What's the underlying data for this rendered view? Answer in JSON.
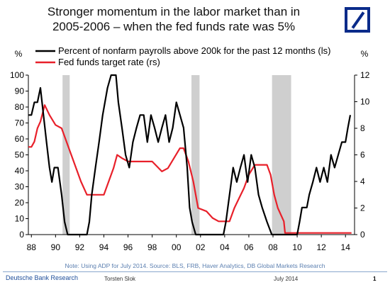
{
  "header": {
    "title_line1": "Stronger momentum in the labor market than in",
    "title_line2": "2005-2006 – when the fed funds rate was 5%"
  },
  "footer": {
    "note": "Note: Using ADP for July 2014. Source: BLS, FRB, Haver Analytics, DB Global Markets Research",
    "brand": "Deutsche Bank Research",
    "author": "Torsten Slok",
    "date": "July 2014",
    "page": "1"
  },
  "colors": {
    "payrolls": "#000000",
    "fed_funds": "#e8202a",
    "recession": "#cfcfcf",
    "brand": "#0a2b8a"
  },
  "chart_data": {
    "type": "line",
    "left_unit": "%",
    "right_unit": "%",
    "x_ticks": [
      "88",
      "90",
      "92",
      "94",
      "96",
      "98",
      "00",
      "02",
      "04",
      "06",
      "08",
      "10",
      "12",
      "14"
    ],
    "xlim": [
      1987.75,
      2014.75
    ],
    "ylim_left": [
      0,
      100
    ],
    "ylim_right": [
      0,
      12
    ],
    "y_ticks_left": [
      "0",
      "10",
      "20",
      "30",
      "40",
      "50",
      "60",
      "70",
      "80",
      "90",
      "100"
    ],
    "y_ticks_right": [
      "0",
      "2",
      "4",
      "6",
      "8",
      "10",
      "12"
    ],
    "recessions": [
      [
        1990.58,
        1991.17
      ],
      [
        2001.25,
        2001.92
      ],
      [
        2007.92,
        2009.5
      ]
    ],
    "series": [
      {
        "name": "Percent of nonfarm payrolls above 200k for the past 12 months (ls)",
        "axis": "left",
        "points": [
          [
            1987.75,
            75
          ],
          [
            1988.0,
            75
          ],
          [
            1988.25,
            83
          ],
          [
            1988.5,
            83
          ],
          [
            1988.75,
            92
          ],
          [
            1989.0,
            75
          ],
          [
            1989.25,
            58
          ],
          [
            1989.5,
            42
          ],
          [
            1989.7,
            33
          ],
          [
            1989.9,
            42
          ],
          [
            1990.2,
            42
          ],
          [
            1990.5,
            25
          ],
          [
            1990.75,
            8
          ],
          [
            1991.0,
            0
          ],
          [
            1991.5,
            0
          ],
          [
            1992.0,
            0
          ],
          [
            1992.6,
            0
          ],
          [
            1992.8,
            8
          ],
          [
            1993.0,
            25
          ],
          [
            1993.3,
            42
          ],
          [
            1993.6,
            58
          ],
          [
            1993.9,
            75
          ],
          [
            1994.3,
            92
          ],
          [
            1994.6,
            100
          ],
          [
            1995.0,
            100
          ],
          [
            1995.2,
            83
          ],
          [
            1995.5,
            67
          ],
          [
            1995.8,
            50
          ],
          [
            1996.1,
            42
          ],
          [
            1996.4,
            58
          ],
          [
            1996.7,
            67
          ],
          [
            1997.0,
            75
          ],
          [
            1997.3,
            75
          ],
          [
            1997.6,
            58
          ],
          [
            1997.9,
            75
          ],
          [
            1998.2,
            67
          ],
          [
            1998.5,
            58
          ],
          [
            1998.8,
            67
          ],
          [
            1999.1,
            75
          ],
          [
            1999.4,
            58
          ],
          [
            1999.7,
            67
          ],
          [
            2000.0,
            83
          ],
          [
            2000.3,
            75
          ],
          [
            2000.6,
            67
          ],
          [
            2000.9,
            42
          ],
          [
            2001.1,
            17
          ],
          [
            2001.3,
            8
          ],
          [
            2001.6,
            0
          ],
          [
            2002.0,
            0
          ],
          [
            2003.0,
            0
          ],
          [
            2003.9,
            0
          ],
          [
            2004.1,
            8
          ],
          [
            2004.4,
            25
          ],
          [
            2004.7,
            42
          ],
          [
            2005.0,
            33
          ],
          [
            2005.3,
            42
          ],
          [
            2005.6,
            50
          ],
          [
            2005.9,
            33
          ],
          [
            2006.2,
            50
          ],
          [
            2006.5,
            42
          ],
          [
            2006.8,
            25
          ],
          [
            2007.1,
            17
          ],
          [
            2007.5,
            8
          ],
          [
            2007.9,
            0
          ],
          [
            2008.5,
            0
          ],
          [
            2009.5,
            0
          ],
          [
            2010.0,
            0
          ],
          [
            2010.2,
            8
          ],
          [
            2010.4,
            17
          ],
          [
            2010.8,
            17
          ],
          [
            2011.0,
            25
          ],
          [
            2011.3,
            33
          ],
          [
            2011.6,
            42
          ],
          [
            2011.9,
            33
          ],
          [
            2012.2,
            42
          ],
          [
            2012.5,
            33
          ],
          [
            2012.8,
            50
          ],
          [
            2013.1,
            42
          ],
          [
            2013.4,
            50
          ],
          [
            2013.7,
            58
          ],
          [
            2014.0,
            58
          ],
          [
            2014.2,
            67
          ],
          [
            2014.4,
            75
          ]
        ]
      },
      {
        "name": "Fed funds target rate (rs)",
        "axis": "right",
        "points": [
          [
            1987.75,
            6.6
          ],
          [
            1988.0,
            6.6
          ],
          [
            1988.25,
            7.0
          ],
          [
            1988.5,
            8.0
          ],
          [
            1988.75,
            8.5
          ],
          [
            1989.1,
            9.75
          ],
          [
            1989.5,
            9.0
          ],
          [
            1990.0,
            8.25
          ],
          [
            1990.5,
            8.0
          ],
          [
            1990.9,
            7.0
          ],
          [
            1991.3,
            6.0
          ],
          [
            1991.7,
            5.0
          ],
          [
            1992.1,
            4.0
          ],
          [
            1992.6,
            3.0
          ],
          [
            1993.0,
            3.0
          ],
          [
            1993.5,
            3.0
          ],
          [
            1994.0,
            3.0
          ],
          [
            1994.4,
            4.0
          ],
          [
            1994.8,
            5.0
          ],
          [
            1995.1,
            6.0
          ],
          [
            1995.5,
            5.75
          ],
          [
            1996.0,
            5.5
          ],
          [
            1997.0,
            5.5
          ],
          [
            1998.0,
            5.5
          ],
          [
            1998.8,
            4.75
          ],
          [
            1999.3,
            5.0
          ],
          [
            1999.8,
            5.75
          ],
          [
            2000.3,
            6.5
          ],
          [
            2000.6,
            6.5
          ],
          [
            2001.0,
            5.5
          ],
          [
            2001.4,
            4.0
          ],
          [
            2001.8,
            2.0
          ],
          [
            2002.5,
            1.75
          ],
          [
            2003.0,
            1.25
          ],
          [
            2003.5,
            1.0
          ],
          [
            2004.4,
            1.0
          ],
          [
            2004.8,
            2.0
          ],
          [
            2005.2,
            2.75
          ],
          [
            2005.6,
            3.5
          ],
          [
            2006.0,
            4.5
          ],
          [
            2006.5,
            5.25
          ],
          [
            2007.5,
            5.25
          ],
          [
            2007.8,
            4.5
          ],
          [
            2008.1,
            3.0
          ],
          [
            2008.4,
            2.0
          ],
          [
            2008.9,
            1.0
          ],
          [
            2009.0,
            0.125
          ],
          [
            2014.5,
            0.125
          ]
        ]
      }
    ]
  }
}
